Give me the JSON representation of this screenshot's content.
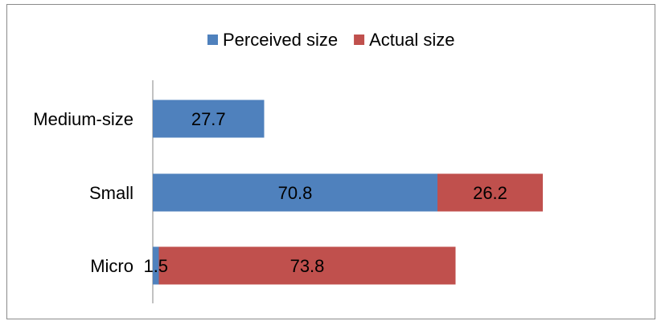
{
  "chart_data": {
    "type": "bar",
    "orientation": "horizontal",
    "stacked": true,
    "categories": [
      "Medium-size",
      "Small",
      "Micro"
    ],
    "series": [
      {
        "name": "Perceived size",
        "color": "#4F81BD",
        "values": [
          27.7,
          70.8,
          1.5
        ]
      },
      {
        "name": "Actual size",
        "color": "#C0504D",
        "values": [
          0,
          26.2,
          73.8
        ]
      }
    ],
    "legend_position": "top",
    "grid": false,
    "xlim": [
      0,
      100
    ]
  }
}
